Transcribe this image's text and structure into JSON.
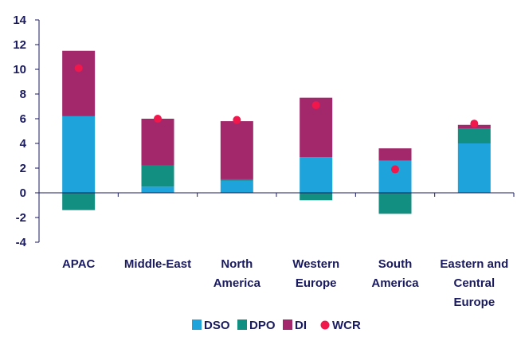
{
  "chart_data": {
    "type": "bar",
    "stacked": true,
    "categories": [
      "APAC",
      "Middle-East",
      "North America",
      "Western Europe",
      "South America",
      "Eastern and Central Europe"
    ],
    "category_label_lines": [
      [
        "APAC"
      ],
      [
        "Middle-East"
      ],
      [
        "North",
        "America"
      ],
      [
        "Western",
        "Europe"
      ],
      [
        "South",
        "America"
      ],
      [
        "Eastern and",
        "Central",
        "Europe"
      ]
    ],
    "series": [
      {
        "name": "DSO",
        "kind": "bar",
        "color": "#1ea3da",
        "values": [
          6.2,
          0.5,
          1.0,
          2.9,
          2.6,
          4.0
        ]
      },
      {
        "name": "DPO",
        "kind": "bar",
        "color": "#138f82",
        "values": [
          -1.4,
          1.7,
          0.1,
          -0.6,
          -1.7,
          1.2
        ]
      },
      {
        "name": "DI",
        "kind": "bar",
        "color": "#a2276b",
        "values": [
          5.3,
          3.8,
          4.7,
          4.8,
          1.0,
          0.3
        ]
      },
      {
        "name": "WCR",
        "kind": "marker",
        "color": "#f0174d",
        "values": [
          10.1,
          6.0,
          5.9,
          7.1,
          1.9,
          5.6
        ]
      }
    ],
    "ylim": [
      -4,
      14
    ],
    "yticks": [
      -4,
      -2,
      0,
      2,
      4,
      6,
      8,
      10,
      12,
      14
    ],
    "grid": false,
    "legend_position": "bottom",
    "title": "",
    "xlabel": "",
    "ylabel": ""
  },
  "colors": {
    "axis": "#1a1a5e",
    "text": "#1a1a5e"
  }
}
